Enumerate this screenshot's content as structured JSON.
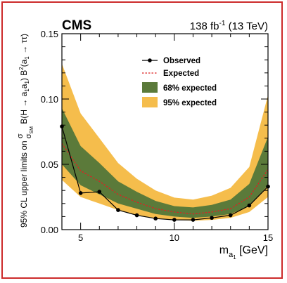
{
  "chart_data": {
    "type": "line",
    "experiment": "CMS",
    "luminosity": "138 fb",
    "lumi_exp": "-1",
    "energy": "(13 TeV)",
    "xlabel": {
      "main": "m",
      "sub1": "a",
      "sub2": "1",
      "unit": " [GeV]"
    },
    "ylabel": {
      "pre": "95% CL upper limits on ",
      "frac_num": "σ",
      "frac_den": "σ",
      "frac_den_sub": "SM",
      "mid": " B(H → a",
      "a1a": "1",
      "mid2": "a",
      "a1b": "1",
      "mid3": ") B",
      "sq": "2",
      "mid4": "(a",
      "a1c": "1",
      "tail": " → ττ)"
    },
    "xlim": [
      4,
      15
    ],
    "ylim": [
      0,
      0.15
    ],
    "x_ticks": [
      {
        "v": 5,
        "label": "5"
      },
      {
        "v": 10,
        "label": "10"
      },
      {
        "v": 15,
        "label": "15"
      }
    ],
    "y_ticks": [
      {
        "v": 0,
        "label": "0.00"
      },
      {
        "v": 0.05,
        "label": "0.05"
      },
      {
        "v": 0.1,
        "label": "0.10"
      },
      {
        "v": 0.15,
        "label": "0.15"
      }
    ],
    "x": [
      4,
      5,
      6,
      7,
      8,
      9,
      10,
      11,
      12,
      13,
      14,
      15
    ],
    "observed": [
      0.079,
      0.028,
      0.029,
      0.015,
      0.011,
      0.0085,
      0.0075,
      0.0075,
      0.009,
      0.011,
      0.0185,
      0.033
    ],
    "expected": [
      0.066,
      0.045,
      0.037,
      0.027,
      0.021,
      0.016,
      0.0135,
      0.012,
      0.0135,
      0.016,
      0.025,
      0.046
    ],
    "band68": {
      "low": [
        0.05,
        0.034,
        0.027,
        0.02,
        0.016,
        0.012,
        0.01,
        0.009,
        0.01,
        0.012,
        0.018,
        0.034
      ],
      "high": [
        0.093,
        0.064,
        0.051,
        0.037,
        0.029,
        0.022,
        0.018,
        0.017,
        0.019,
        0.023,
        0.035,
        0.071
      ]
    },
    "band95": {
      "low": [
        0.038,
        0.025,
        0.02,
        0.015,
        0.011,
        0.0085,
        0.0075,
        0.0068,
        0.0075,
        0.009,
        0.0135,
        0.025
      ],
      "high": [
        0.127,
        0.089,
        0.07,
        0.051,
        0.039,
        0.03,
        0.0245,
        0.023,
        0.026,
        0.032,
        0.048,
        0.103
      ]
    },
    "legend": [
      {
        "key": "observed",
        "label": "Observed"
      },
      {
        "key": "expected",
        "label": "Expected"
      },
      {
        "key": "band68",
        "label": "68% expected"
      },
      {
        "key": "band95",
        "label": "95% expected"
      }
    ],
    "legend_position": "top-right",
    "grid": false,
    "colors": {
      "band95": "#f5bd4c",
      "band68": "#5b7a3a",
      "expected": "#dd2222",
      "observed": "#000000",
      "frame": "#cc2a2a"
    }
  }
}
